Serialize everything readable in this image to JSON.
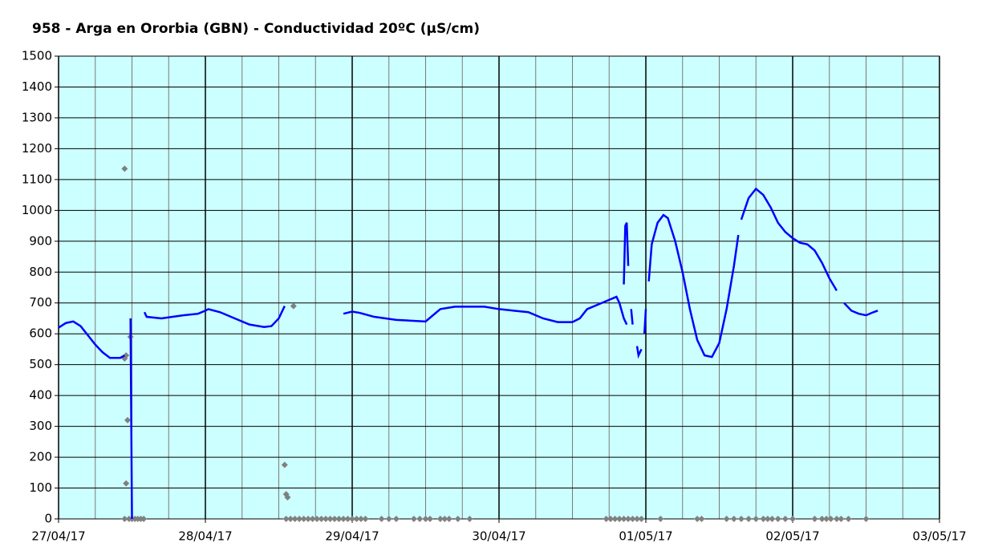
{
  "chart_data": {
    "type": "line",
    "title": "958 - Arga en Ororbia (GBN) - Conductividad 20ºC (µS/cm)",
    "xlim": [
      0,
      6
    ],
    "xticks": [
      {
        "value": 0,
        "label": "27/04/17"
      },
      {
        "value": 1,
        "label": "28/04/17"
      },
      {
        "value": 2,
        "label": "29/04/17"
      },
      {
        "value": 3,
        "label": "30/04/17"
      },
      {
        "value": 4,
        "label": "01/05/17"
      },
      {
        "value": 5,
        "label": "02/05/17"
      },
      {
        "value": 6,
        "label": "03/05/17"
      }
    ],
    "xminorticks": [
      0.25,
      0.5,
      0.75,
      1.25,
      1.5,
      1.75,
      2.25,
      2.5,
      2.75,
      3.25,
      3.5,
      3.75,
      4.25,
      4.5,
      4.75,
      5.25,
      5.5,
      5.75
    ],
    "ylim": [
      0,
      1500
    ],
    "yticks": [
      0,
      100,
      200,
      300,
      400,
      500,
      600,
      700,
      800,
      900,
      1000,
      1100,
      1200,
      1300,
      1400,
      1500
    ],
    "grid": true,
    "background": "#ccffff",
    "series": [
      {
        "color": "#0000ff",
        "x": [
          0,
          0.05,
          0.1,
          0.15,
          0.2,
          0.25,
          0.3,
          0.35,
          0.42,
          0.45,
          null,
          0.49,
          0.5,
          null,
          0.585,
          0.6,
          0.7,
          0.85,
          0.95,
          1.0,
          1.02,
          1.1,
          1.2,
          1.3,
          1.4,
          1.45,
          1.5,
          1.54,
          null,
          1.94,
          2.0,
          2.05,
          2.15,
          2.3,
          2.5,
          2.55,
          2.6,
          2.7,
          2.9,
          3.0,
          3.1,
          3.2,
          3.3,
          3.4,
          3.5,
          3.55,
          3.6,
          3.7,
          3.75,
          3.8,
          3.82,
          3.85,
          3.87,
          null,
          3.85,
          3.86,
          3.87,
          3.88,
          null,
          3.9,
          3.91,
          null,
          3.94,
          3.95,
          3.97,
          null,
          3.99,
          4.0,
          null,
          4.02,
          4.04,
          4.08,
          4.12,
          4.15,
          4.2,
          4.25,
          4.3,
          4.35,
          4.4,
          4.45,
          4.5,
          4.55,
          4.6,
          4.63,
          null,
          4.65,
          4.7,
          4.75,
          4.8,
          4.85,
          4.9,
          4.95,
          5.0,
          5.05,
          5.1,
          5.15,
          5.2,
          5.25,
          5.3,
          null,
          5.35,
          5.4,
          5.45,
          5.5,
          5.55,
          5.58
        ],
        "values": [
          620,
          635,
          640,
          625,
          595,
          565,
          540,
          522,
          522,
          530,
          null,
          650,
          0,
          null,
          670,
          655,
          650,
          660,
          665,
          675,
          680,
          670,
          650,
          630,
          622,
          625,
          650,
          690,
          null,
          665,
          672,
          668,
          655,
          645,
          640,
          660,
          680,
          688,
          688,
          680,
          675,
          670,
          650,
          638,
          638,
          650,
          680,
          700,
          710,
          720,
          700,
          650,
          630,
          null,
          760,
          950,
          960,
          820,
          null,
          680,
          630,
          null,
          560,
          530,
          550,
          null,
          600,
          680,
          null,
          770,
          890,
          960,
          985,
          975,
          900,
          800,
          680,
          580,
          530,
          525,
          570,
          680,
          820,
          920,
          null,
          970,
          1040,
          1070,
          1050,
          1010,
          960,
          930,
          910,
          895,
          890,
          870,
          830,
          780,
          740,
          null,
          700,
          675,
          665,
          660,
          670,
          675
        ]
      },
      {
        "color": "#808080",
        "marker": "diamond",
        "x": [
          0.45,
          0.45,
          0.46,
          0.49,
          0.47,
          0.46,
          0.45,
          0.48,
          0.5,
          0.52,
          0.54,
          0.56,
          0.58,
          1.54,
          1.55,
          1.56,
          1.6,
          1.55,
          1.58,
          1.61,
          1.64,
          1.67,
          1.7,
          1.73,
          1.76,
          1.79,
          1.82,
          1.85,
          1.88,
          1.91,
          1.94,
          1.97,
          2.0,
          2.03,
          2.06,
          2.09,
          2.2,
          2.25,
          2.3,
          2.42,
          2.46,
          2.5,
          2.53,
          2.6,
          2.63,
          2.66,
          2.72,
          2.8,
          3.73,
          3.76,
          3.79,
          3.82,
          3.85,
          3.88,
          3.91,
          3.94,
          3.97,
          4.1,
          4.35,
          4.38,
          4.55,
          4.6,
          4.65,
          4.7,
          4.75,
          4.8,
          4.83,
          4.86,
          4.9,
          4.95,
          5.0,
          5.15,
          5.2,
          5.23,
          5.26,
          5.3,
          5.33,
          5.38,
          5.5
        ],
        "values": [
          1135,
          520,
          530,
          590,
          320,
          115,
          0,
          0,
          0,
          0,
          0,
          0,
          0,
          175,
          80,
          70,
          690,
          0,
          0,
          0,
          0,
          0,
          0,
          0,
          0,
          0,
          0,
          0,
          0,
          0,
          0,
          0,
          0,
          0,
          0,
          0,
          0,
          0,
          0,
          0,
          0,
          0,
          0,
          0,
          0,
          0,
          0,
          0,
          0,
          0,
          0,
          0,
          0,
          0,
          0,
          0,
          0,
          0,
          0,
          0,
          0,
          0,
          0,
          0,
          0,
          0,
          0,
          0,
          0,
          0,
          0,
          0,
          0,
          0,
          0,
          0,
          0,
          0,
          0
        ]
      }
    ]
  }
}
